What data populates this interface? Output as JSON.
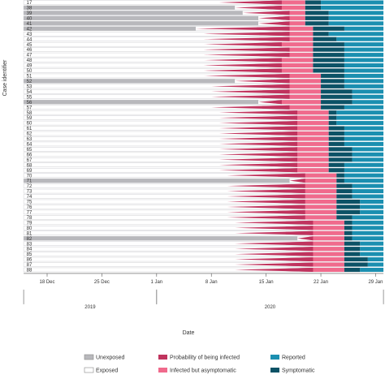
{
  "chart_data": {
    "type": "bar",
    "orientation": "horizontal-timeline",
    "xlabel": "Date",
    "ylabel": "Case identifier",
    "x_ticks": [
      {
        "label": "18 Dec",
        "day": 0
      },
      {
        "label": "25 Dec",
        "day": 7
      },
      {
        "label": "1 Jan",
        "day": 14
      },
      {
        "label": "8 Jan",
        "day": 21
      },
      {
        "label": "15 Jan",
        "day": 28
      },
      {
        "label": "22 Jan",
        "day": 35
      },
      {
        "label": "29 Jan",
        "day": 42
      }
    ],
    "x_range_days": [
      -3,
      43
    ],
    "years": [
      {
        "label": "2019",
        "from_day": -3,
        "to_day": 14
      },
      {
        "label": "2020",
        "from_day": 14,
        "to_day": 43
      }
    ],
    "legend": [
      {
        "key": "unexposed",
        "label": "Unexposed",
        "color": "#b8b8bc"
      },
      {
        "key": "exposed",
        "label": "Exposed",
        "color": "#ffffff"
      },
      {
        "key": "probability",
        "label": "Probability of being infected",
        "color": "#c0345e"
      },
      {
        "key": "asymptomatic",
        "label": "Infected but asymptomatic",
        "color": "#f06a8c"
      },
      {
        "key": "reported",
        "label": "Reported",
        "color": "#1b8fb0"
      },
      {
        "key": "symptomatic",
        "label": "Symptomatic",
        "color": "#0c5266"
      }
    ],
    "cases": [
      {
        "id": "17",
        "unexposed_end": null,
        "prob_start": 22,
        "prob_end": 30,
        "symptom": 33,
        "report": 35
      },
      {
        "id": "38",
        "unexposed_end": 24,
        "prob_start": 24,
        "prob_end": 30,
        "symptom": 33,
        "report": 35
      },
      {
        "id": "39",
        "unexposed_end": 25,
        "prob_start": 25,
        "prob_end": 31,
        "symptom": 33,
        "report": 36
      },
      {
        "id": "40",
        "unexposed_end": 27,
        "prob_start": 27,
        "prob_end": 31,
        "symptom": 33,
        "report": 36
      },
      {
        "id": "41",
        "unexposed_end": 27,
        "prob_start": 27,
        "prob_end": 31,
        "symptom": 33,
        "report": 36
      },
      {
        "id": "42",
        "unexposed_end": 19,
        "prob_start": 19,
        "prob_end": 31,
        "symptom": 34,
        "report": 38
      },
      {
        "id": "43",
        "unexposed_end": null,
        "prob_start": 20,
        "prob_end": 31,
        "symptom": 34,
        "report": 36
      },
      {
        "id": "44",
        "unexposed_end": null,
        "prob_start": 20,
        "prob_end": 31,
        "symptom": 34,
        "report": 37
      },
      {
        "id": "45",
        "unexposed_end": null,
        "prob_start": 20,
        "prob_end": 30,
        "symptom": 34,
        "report": 38
      },
      {
        "id": "46",
        "unexposed_end": null,
        "prob_start": 20,
        "prob_end": 31,
        "symptom": 34,
        "report": 38
      },
      {
        "id": "47",
        "unexposed_end": null,
        "prob_start": 20,
        "prob_end": 31,
        "symptom": 34,
        "report": 38
      },
      {
        "id": "48",
        "unexposed_end": null,
        "prob_start": 20,
        "prob_end": 30,
        "symptom": 34,
        "report": 38
      },
      {
        "id": "49",
        "unexposed_end": null,
        "prob_start": 20,
        "prob_end": 30,
        "symptom": 34,
        "report": 38
      },
      {
        "id": "50",
        "unexposed_end": null,
        "prob_start": 20,
        "prob_end": 30,
        "symptom": 34,
        "report": 38
      },
      {
        "id": "51",
        "unexposed_end": null,
        "prob_start": 20,
        "prob_end": 31,
        "symptom": 35,
        "report": 38
      },
      {
        "id": "52",
        "unexposed_end": 24,
        "prob_start": 24,
        "prob_end": 31,
        "symptom": 35,
        "report": 38
      },
      {
        "id": "53",
        "unexposed_end": null,
        "prob_start": 21,
        "prob_end": 31,
        "symptom": 35,
        "report": 38
      },
      {
        "id": "54",
        "unexposed_end": null,
        "prob_start": 21,
        "prob_end": 31,
        "symptom": 35,
        "report": 39
      },
      {
        "id": "55",
        "unexposed_end": null,
        "prob_start": 21,
        "prob_end": 31,
        "symptom": 35,
        "report": 39
      },
      {
        "id": "56",
        "unexposed_end": 27,
        "prob_start": 27,
        "prob_end": 30,
        "symptom": 35,
        "report": 39
      },
      {
        "id": "57",
        "unexposed_end": null,
        "prob_start": 21,
        "prob_end": 31,
        "symptom": 35,
        "report": 38
      },
      {
        "id": "58",
        "unexposed_end": null,
        "prob_start": 22,
        "prob_end": 32,
        "symptom": 36,
        "report": 37
      },
      {
        "id": "59",
        "unexposed_end": null,
        "prob_start": 22,
        "prob_end": 32,
        "symptom": 36,
        "report": 37
      },
      {
        "id": "60",
        "unexposed_end": null,
        "prob_start": 22,
        "prob_end": 32,
        "symptom": 36,
        "report": 37
      },
      {
        "id": "61",
        "unexposed_end": null,
        "prob_start": 22,
        "prob_end": 32,
        "symptom": 36,
        "report": 38
      },
      {
        "id": "62",
        "unexposed_end": null,
        "prob_start": 22,
        "prob_end": 32,
        "symptom": 36,
        "report": 38
      },
      {
        "id": "63",
        "unexposed_end": null,
        "prob_start": 22,
        "prob_end": 32,
        "symptom": 36,
        "report": 38
      },
      {
        "id": "64",
        "unexposed_end": null,
        "prob_start": 22,
        "prob_end": 32,
        "symptom": 36,
        "report": 38
      },
      {
        "id": "65",
        "unexposed_end": null,
        "prob_start": 22,
        "prob_end": 32,
        "symptom": 36,
        "report": 39
      },
      {
        "id": "66",
        "unexposed_end": null,
        "prob_start": 22,
        "prob_end": 32,
        "symptom": 36,
        "report": 39
      },
      {
        "id": "67",
        "unexposed_end": null,
        "prob_start": 22,
        "prob_end": 32,
        "symptom": 36,
        "report": 39
      },
      {
        "id": "68",
        "unexposed_end": null,
        "prob_start": 22,
        "prob_end": 32,
        "symptom": 36,
        "report": 38
      },
      {
        "id": "69",
        "unexposed_end": null,
        "prob_start": 22,
        "prob_end": 32,
        "symptom": 36,
        "report": 38
      },
      {
        "id": "70",
        "unexposed_end": null,
        "prob_start": 23,
        "prob_end": 33,
        "symptom": 37,
        "report": 38
      },
      {
        "id": "71",
        "unexposed_end": 31,
        "prob_start": 31,
        "prob_end": 33,
        "symptom": 37,
        "report": 38
      },
      {
        "id": "72",
        "unexposed_end": null,
        "prob_start": 23,
        "prob_end": 33,
        "symptom": 37,
        "report": 39
      },
      {
        "id": "73",
        "unexposed_end": null,
        "prob_start": 23,
        "prob_end": 33,
        "symptom": 37,
        "report": 39
      },
      {
        "id": "74",
        "unexposed_end": null,
        "prob_start": 23,
        "prob_end": 33,
        "symptom": 37,
        "report": 39
      },
      {
        "id": "75",
        "unexposed_end": null,
        "prob_start": 23,
        "prob_end": 33,
        "symptom": 37,
        "report": 40
      },
      {
        "id": "76",
        "unexposed_end": null,
        "prob_start": 23,
        "prob_end": 33,
        "symptom": 37,
        "report": 40
      },
      {
        "id": "77",
        "unexposed_end": null,
        "prob_start": 23,
        "prob_end": 33,
        "symptom": 37,
        "report": 40
      },
      {
        "id": "78",
        "unexposed_end": null,
        "prob_start": 23,
        "prob_end": 33,
        "symptom": 37,
        "report": 39
      },
      {
        "id": "79",
        "unexposed_end": null,
        "prob_start": 24,
        "prob_end": 34,
        "symptom": 38,
        "report": 39
      },
      {
        "id": "80",
        "unexposed_end": null,
        "prob_start": 24,
        "prob_end": 34,
        "symptom": 38,
        "report": 39
      },
      {
        "id": "81",
        "unexposed_end": null,
        "prob_start": 24,
        "prob_end": 34,
        "symptom": 38,
        "report": 39
      },
      {
        "id": "82",
        "unexposed_end": 32,
        "prob_start": 32,
        "prob_end": 34,
        "symptom": 38,
        "report": 39
      },
      {
        "id": "83",
        "unexposed_end": null,
        "prob_start": 24,
        "prob_end": 34,
        "symptom": 38,
        "report": 40
      },
      {
        "id": "84",
        "unexposed_end": null,
        "prob_start": 24,
        "prob_end": 34,
        "symptom": 38,
        "report": 40
      },
      {
        "id": "85",
        "unexposed_end": null,
        "prob_start": 24,
        "prob_end": 34,
        "symptom": 38,
        "report": 40
      },
      {
        "id": "86",
        "unexposed_end": null,
        "prob_start": 24,
        "prob_end": 34,
        "symptom": 38,
        "report": 41
      },
      {
        "id": "87",
        "unexposed_end": null,
        "prob_start": 24,
        "prob_end": 34,
        "symptom": 38,
        "report": 41
      },
      {
        "id": "88",
        "unexposed_end": null,
        "prob_start": 24,
        "prob_end": 34,
        "symptom": 38,
        "report": 40
      }
    ]
  }
}
